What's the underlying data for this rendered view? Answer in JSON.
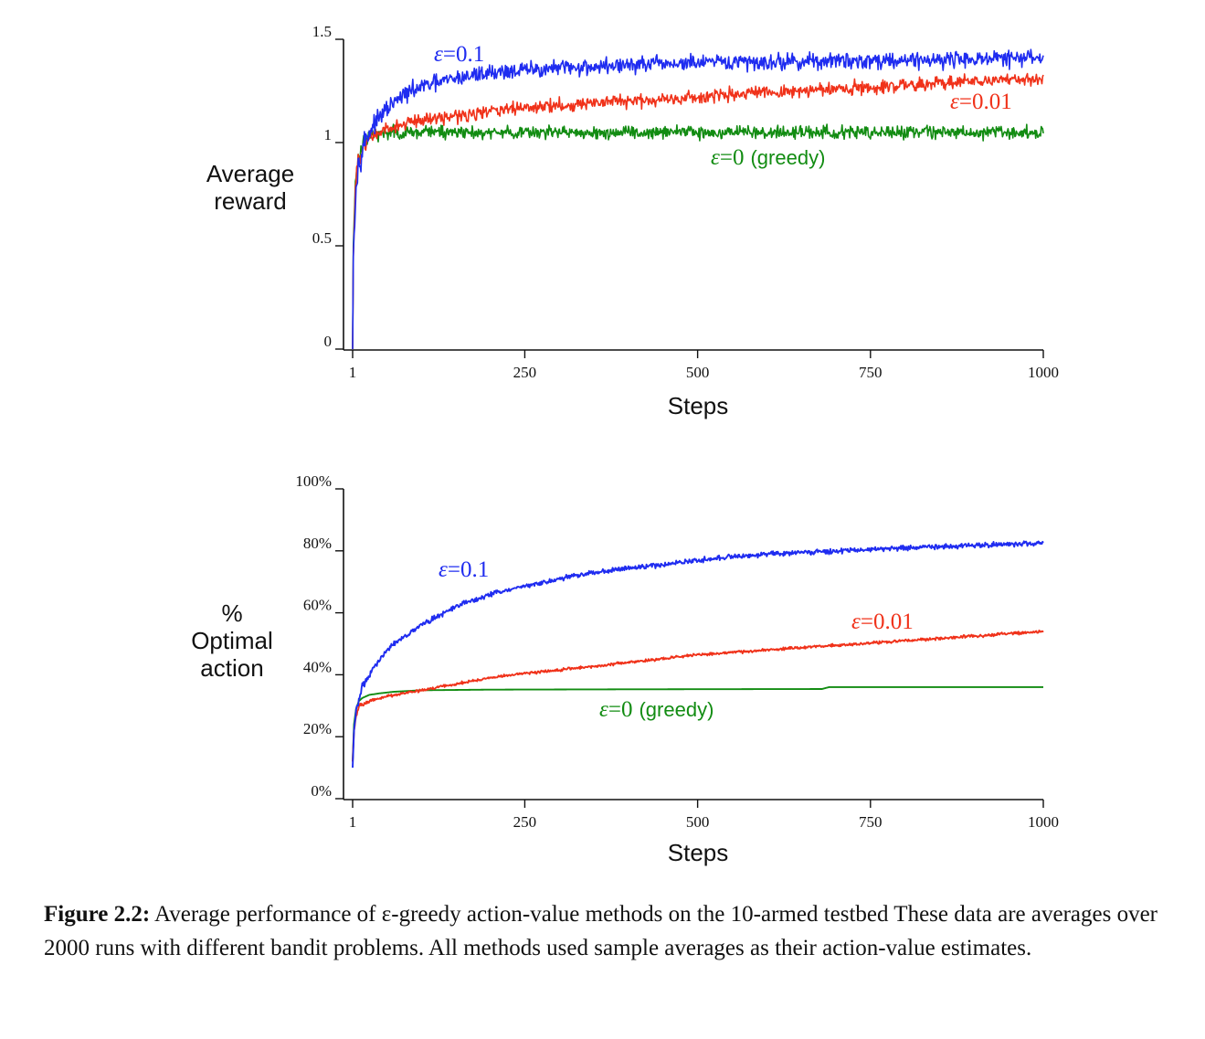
{
  "chart_data": [
    {
      "type": "line",
      "ylabel": [
        "Average",
        "reward"
      ],
      "xlabel": "Steps",
      "xlim": [
        1,
        1000
      ],
      "ylim": [
        0,
        1.5
      ],
      "xticks": [
        {
          "v": 1,
          "label": "1"
        },
        {
          "v": 250,
          "label": "250"
        },
        {
          "v": 500,
          "label": "500"
        },
        {
          "v": 750,
          "label": "750"
        },
        {
          "v": 1000,
          "label": "1000"
        }
      ],
      "yticks": [
        {
          "v": 0,
          "label": "0"
        },
        {
          "v": 0.5,
          "label": "0.5"
        },
        {
          "v": 1,
          "label": "1"
        },
        {
          "v": 1.5,
          "label": "1.5"
        }
      ],
      "grid": false,
      "series": [
        {
          "name": "ε=0.1",
          "label_parts": [
            "ε",
            "=",
            "0.1",
            ""
          ],
          "color": "#1f2cf0",
          "x": [
            1,
            2,
            5,
            10,
            20,
            30,
            50,
            75,
            100,
            150,
            200,
            250,
            300,
            400,
            500,
            600,
            700,
            800,
            900,
            1000
          ],
          "y": [
            0.0,
            0.45,
            0.75,
            0.92,
            1.02,
            1.08,
            1.16,
            1.23,
            1.27,
            1.31,
            1.34,
            1.35,
            1.36,
            1.375,
            1.385,
            1.39,
            1.395,
            1.4,
            1.405,
            1.41
          ],
          "noise": 0.028
        },
        {
          "name": "ε=0.01",
          "label_parts": [
            "ε",
            "=",
            "0.01",
            ""
          ],
          "color": "#f0321a",
          "x": [
            1,
            2,
            5,
            10,
            20,
            30,
            50,
            75,
            100,
            150,
            200,
            250,
            300,
            400,
            500,
            600,
            700,
            800,
            900,
            1000
          ],
          "y": [
            0.0,
            0.45,
            0.78,
            0.92,
            1.0,
            1.03,
            1.06,
            1.09,
            1.11,
            1.13,
            1.15,
            1.17,
            1.18,
            1.2,
            1.22,
            1.24,
            1.26,
            1.28,
            1.3,
            1.31
          ],
          "noise": 0.022
        },
        {
          "name": "ε=0 (greedy)",
          "label_parts": [
            "ε",
            "=",
            "0",
            "(greedy)"
          ],
          "color": "#128c12",
          "x": [
            1,
            2,
            5,
            10,
            20,
            30,
            50,
            100,
            200,
            400,
            600,
            800,
            1000
          ],
          "y": [
            0.0,
            0.5,
            0.8,
            0.95,
            1.02,
            1.04,
            1.05,
            1.05,
            1.05,
            1.05,
            1.05,
            1.05,
            1.05
          ],
          "noise": 0.022
        }
      ]
    },
    {
      "type": "line",
      "ylabel": [
        "%",
        "Optimal",
        "action"
      ],
      "xlabel": "Steps",
      "xlim": [
        1,
        1000
      ],
      "ylim": [
        0,
        100
      ],
      "xticks": [
        {
          "v": 1,
          "label": "1"
        },
        {
          "v": 250,
          "label": "250"
        },
        {
          "v": 500,
          "label": "500"
        },
        {
          "v": 750,
          "label": "750"
        },
        {
          "v": 1000,
          "label": "1000"
        }
      ],
      "yticks": [
        {
          "v": 0,
          "label": "0%"
        },
        {
          "v": 20,
          "label": "20%"
        },
        {
          "v": 40,
          "label": "40%"
        },
        {
          "v": 60,
          "label": "60%"
        },
        {
          "v": 80,
          "label": "80%"
        },
        {
          "v": 100,
          "label": "100%"
        }
      ],
      "grid": false,
      "series": [
        {
          "name": "ε=0.1",
          "label_parts": [
            "ε",
            "=",
            "0.1",
            ""
          ],
          "color": "#1f2cf0",
          "x": [
            1,
            3,
            6,
            10,
            15,
            25,
            40,
            60,
            80,
            100,
            125,
            150,
            200,
            250,
            300,
            350,
            400,
            450,
            500,
            550,
            600,
            650,
            700,
            750,
            800,
            850,
            900,
            950,
            1000
          ],
          "y": [
            10,
            22,
            28,
            32,
            36,
            40,
            45,
            50,
            53,
            56,
            59,
            62,
            66,
            68.5,
            71,
            73,
            74.5,
            75.5,
            77,
            78,
            79,
            79.5,
            80,
            80.5,
            81,
            81.3,
            81.8,
            82.2,
            82.5
          ],
          "noise": 0.55
        },
        {
          "name": "ε=0.01",
          "label_parts": [
            "ε",
            "=",
            "0.01",
            ""
          ],
          "color": "#f0321a",
          "x": [
            1,
            3,
            6,
            10,
            15,
            25,
            50,
            100,
            150,
            200,
            250,
            300,
            400,
            500,
            600,
            700,
            800,
            900,
            1000
          ],
          "y": [
            12,
            22,
            27,
            29.5,
            30.5,
            31.5,
            33,
            35,
            37,
            39,
            40.5,
            41.5,
            44,
            46.5,
            48,
            49.5,
            51,
            52.5,
            54
          ],
          "noise": 0.3
        },
        {
          "name": "ε=0 (greedy)",
          "label_parts": [
            "ε",
            "=",
            "0",
            "(greedy)"
          ],
          "color": "#128c12",
          "x": [
            1,
            3,
            6,
            10,
            15,
            25,
            40,
            60,
            100,
            200,
            400,
            680,
            690,
            1000
          ],
          "y": [
            12,
            24,
            29,
            31.5,
            32.5,
            33.5,
            34,
            34.5,
            35,
            35.2,
            35.3,
            35.4,
            36,
            36
          ],
          "noise": 0
        }
      ]
    }
  ],
  "caption": {
    "label": "Figure 2.2:",
    "text": " Average performance of ε-greedy action-value methods on the 10-armed testbed These data are averages over 2000 runs with different bandit problems. All methods used sample averages as their action-value estimates."
  }
}
